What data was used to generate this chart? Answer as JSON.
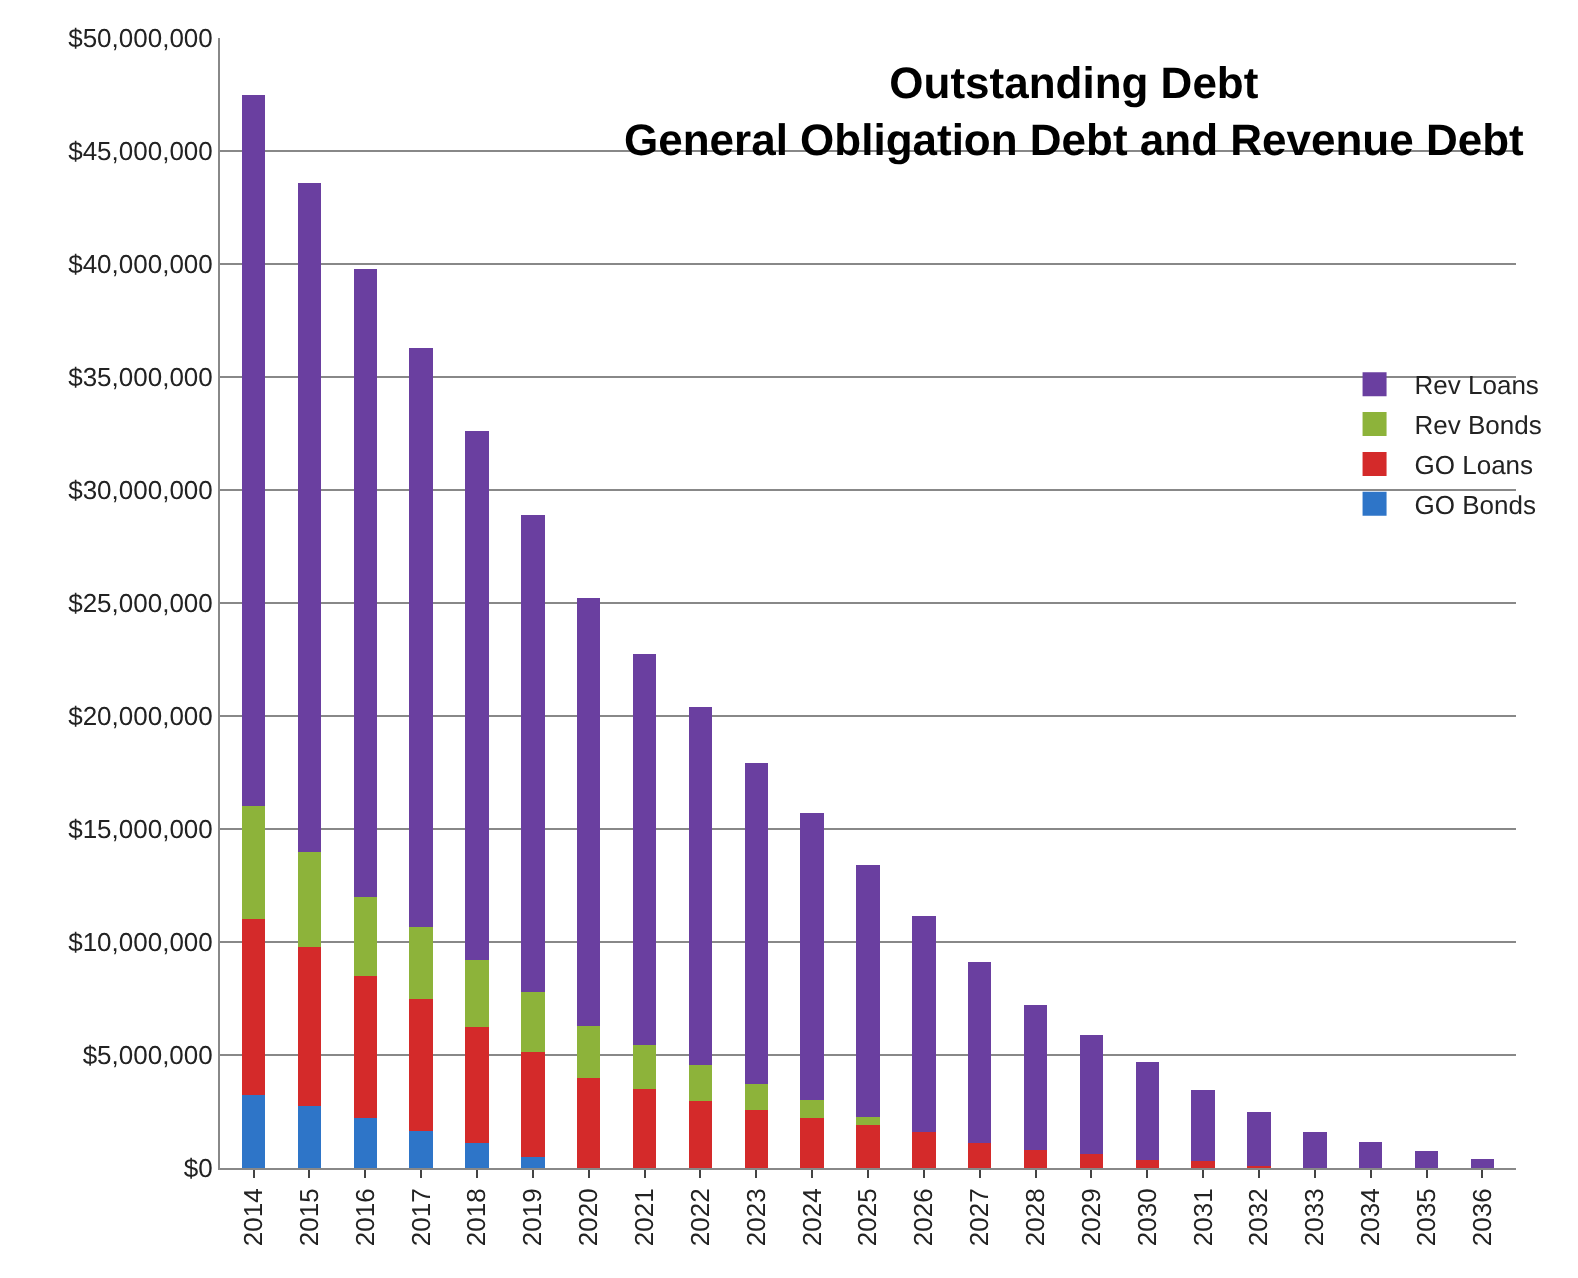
{
  "chart_data": {
    "type": "bar",
    "stacked": true,
    "title": "Outstanding Debt\nGeneral Obligation Debt and Revenue Debt",
    "categories": [
      "2014",
      "2015",
      "2016",
      "2017",
      "2018",
      "2019",
      "2020",
      "2021",
      "2022",
      "2023",
      "2024",
      "2025",
      "2026",
      "2027",
      "2028",
      "2029",
      "2030",
      "2031",
      "2032",
      "2033",
      "2034",
      "2035",
      "2036"
    ],
    "series": [
      {
        "name": "GO Bonds",
        "color": "#2e75c8",
        "values": [
          3250000,
          2750000,
          2200000,
          1650000,
          1100000,
          500000,
          0,
          0,
          0,
          0,
          0,
          0,
          0,
          0,
          0,
          0,
          0,
          0,
          0,
          0,
          0,
          0,
          0
        ]
      },
      {
        "name": "GO Loans",
        "color": "#d42a2a",
        "values": [
          7750000,
          7050000,
          6300000,
          5850000,
          5150000,
          4650000,
          4000000,
          3500000,
          2950000,
          2550000,
          2200000,
          1900000,
          1600000,
          1100000,
          800000,
          600000,
          350000,
          300000,
          100000,
          0,
          0,
          0,
          0
        ]
      },
      {
        "name": "Rev Bonds",
        "color": "#8db33a",
        "values": [
          5000000,
          4200000,
          3500000,
          3150000,
          2950000,
          2650000,
          2300000,
          1950000,
          1600000,
          1150000,
          800000,
          350000,
          0,
          0,
          0,
          0,
          0,
          0,
          0,
          0,
          0,
          0,
          0
        ]
      },
      {
        "name": "Rev Loans",
        "color": "#6a3fa0",
        "values": [
          31500000,
          29600000,
          27800000,
          25650000,
          23400000,
          21100000,
          18900000,
          17300000,
          15850000,
          14200000,
          12700000,
          11150000,
          9550000,
          8000000,
          6400000,
          5300000,
          4350000,
          3150000,
          2400000,
          1600000,
          1150000,
          750000,
          400000
        ]
      }
    ],
    "ylim": [
      0,
      50000000
    ],
    "yticks": [
      {
        "value": 0,
        "label": "$0"
      },
      {
        "value": 5000000,
        "label": "$5,000,000"
      },
      {
        "value": 10000000,
        "label": "$10,000,000"
      },
      {
        "value": 15000000,
        "label": "$15,000,000"
      },
      {
        "value": 20000000,
        "label": "$20,000,000"
      },
      {
        "value": 25000000,
        "label": "$25,000,000"
      },
      {
        "value": 30000000,
        "label": "$30,000,000"
      },
      {
        "value": 35000000,
        "label": "$35,000,000"
      },
      {
        "value": 40000000,
        "label": "$40,000,000"
      },
      {
        "value": 45000000,
        "label": "$45,000,000"
      },
      {
        "value": 50000000,
        "label": "$50,000,000"
      }
    ],
    "grid": "y",
    "legend": "right"
  }
}
